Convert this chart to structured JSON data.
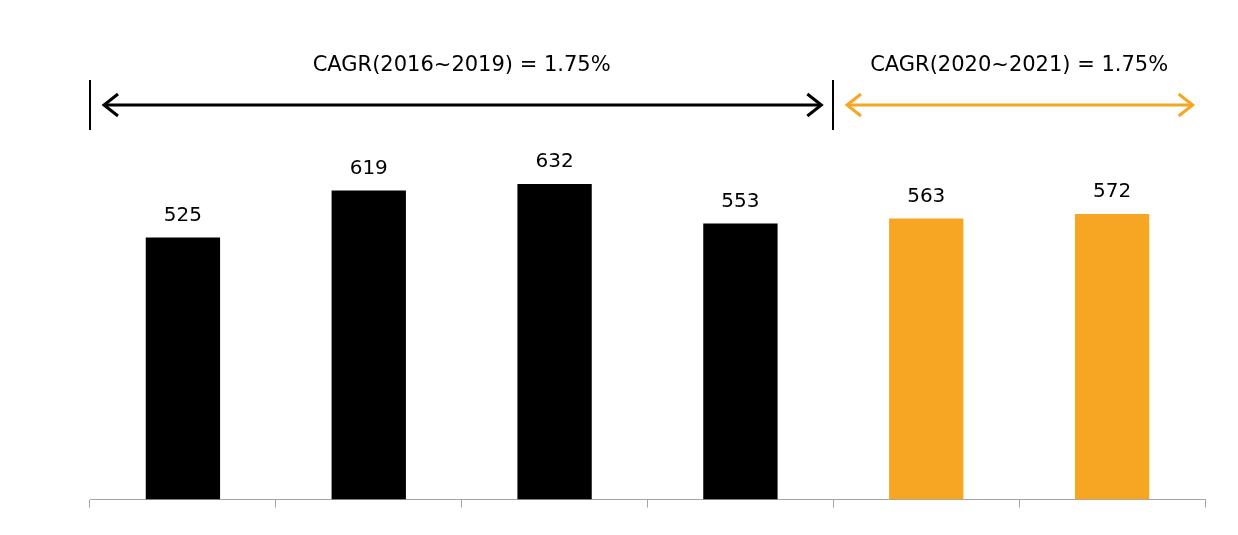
{
  "chart_data": {
    "type": "bar",
    "categories": [
      null,
      null,
      null,
      null,
      null,
      null
    ],
    "values": [
      525,
      619,
      632,
      553,
      563,
      572
    ],
    "colors": [
      "#000000",
      "#000000",
      "#000000",
      "#000000",
      "#f6a623",
      "#f6a623"
    ],
    "data_labels": true,
    "grid": false,
    "annotations": [
      "CAGR(2016~2019) = 1.75%",
      "CAGR(2020~2021) = 1.75%"
    ]
  }
}
